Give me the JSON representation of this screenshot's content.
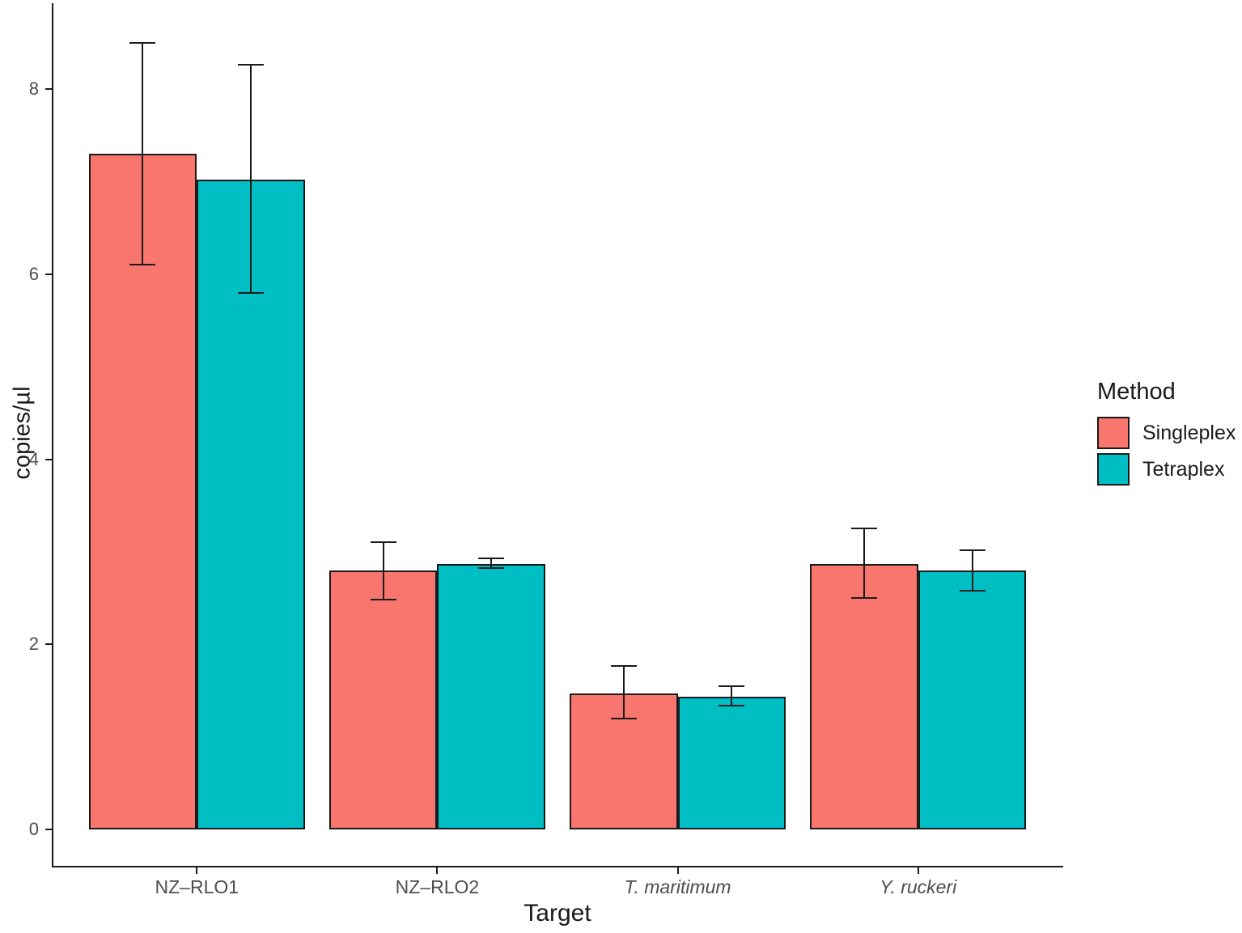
{
  "chart_data": {
    "type": "bar",
    "title": "",
    "xlabel": "Target",
    "ylabel": "copies/µl",
    "ylim": [
      0,
      8.93
    ],
    "yticks": [
      0,
      2,
      4,
      6,
      8
    ],
    "grid": false,
    "legend": {
      "title": "Method",
      "position": "right"
    },
    "categories": [
      "NZ–RLO1",
      "NZ–RLO2",
      "T. maritimum",
      "Y. ruckeri"
    ],
    "categories_italic": [
      false,
      false,
      true,
      true
    ],
    "series": [
      {
        "name": "Singleplex",
        "color": "#F8766D",
        "values": [
          7.3,
          2.8,
          1.47,
          2.87
        ],
        "error_low": [
          6.1,
          2.48,
          1.2,
          2.5
        ],
        "error_high": [
          8.5,
          3.1,
          1.77,
          3.25
        ]
      },
      {
        "name": "Tetraplex",
        "color": "#00BFC4",
        "values": [
          7.02,
          2.87,
          1.43,
          2.8
        ],
        "error_low": [
          5.8,
          2.82,
          1.34,
          2.58
        ],
        "error_high": [
          8.26,
          2.93,
          1.55,
          3.02
        ]
      }
    ],
    "bar_outline_color": "#1A1A1A",
    "errorbar_color": "#1A1A1A",
    "tick_label_color": "#4D4D4D",
    "axis_title_color": "#1A1A1A"
  }
}
